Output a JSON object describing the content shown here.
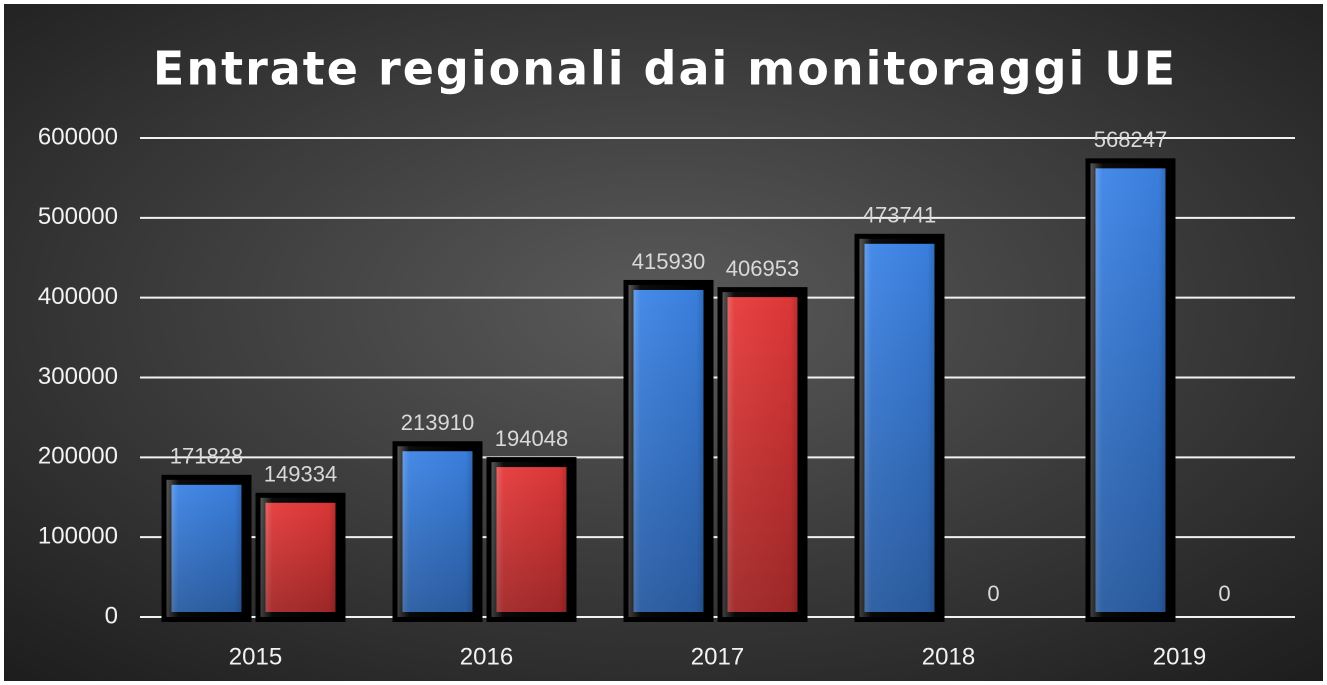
{
  "chart_data": {
    "type": "bar",
    "title": "Entrate regionali dai monitoraggi UE",
    "categories": [
      "2015",
      "2016",
      "2017",
      "2018",
      "2019"
    ],
    "series": [
      {
        "color": "#3d85e8",
        "values": [
          171828,
          213910,
          415930,
          473741,
          568247
        ]
      },
      {
        "color": "#e83a3a",
        "values": [
          149334,
          194048,
          406953,
          0,
          0
        ]
      }
    ],
    "ylim": [
      0,
      600000
    ],
    "yticks": [
      0,
      100000,
      200000,
      300000,
      400000,
      500000,
      600000
    ],
    "grid": true
  }
}
